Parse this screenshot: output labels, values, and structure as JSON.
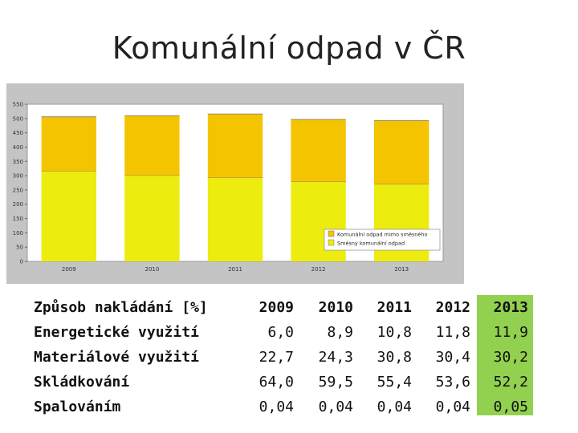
{
  "slide": {
    "title": "Komunální odpad v ČR"
  },
  "chart_data": {
    "type": "bar",
    "stacked": true,
    "categories": [
      "2009",
      "2010",
      "2011",
      "2012",
      "2013"
    ],
    "series": [
      {
        "name": "Směsný komunální odpad",
        "values": [
          316,
          301,
          293,
          279,
          271
        ],
        "color": "#ecec0e"
      },
      {
        "name": "Komunální odpad mimo směsného",
        "values": [
          190,
          209,
          223,
          218,
          222
        ],
        "color": "#f5c400"
      }
    ],
    "ylim": [
      0,
      550
    ],
    "yticks": [
      0,
      50,
      100,
      150,
      200,
      250,
      300,
      350,
      400,
      450,
      500,
      550
    ],
    "grid": false,
    "legend_position": "bottom-right",
    "colors": {
      "plot_bg": "#ffffff",
      "frame_bg": "#c4c4c4"
    }
  },
  "table": {
    "header": [
      "Způsob nakládání [%]",
      "2009",
      "2010",
      "2011",
      "2012",
      "2013"
    ],
    "rows": [
      {
        "label": "Energetické využití",
        "values": [
          "6,0",
          "8,9",
          "10,8",
          "11,8",
          "11,9"
        ]
      },
      {
        "label": "Materiálové využití",
        "values": [
          "22,7",
          "24,3",
          "30,8",
          "30,4",
          "30,2"
        ]
      },
      {
        "label": "Skládkování",
        "values": [
          "64,0",
          "59,5",
          "55,4",
          "53,6",
          "52,2"
        ]
      },
      {
        "label": "Spalováním",
        "values": [
          "0,04",
          "0,04",
          "0,04",
          "0,04",
          "0,05"
        ]
      }
    ],
    "highlight_color": "#92d050"
  }
}
